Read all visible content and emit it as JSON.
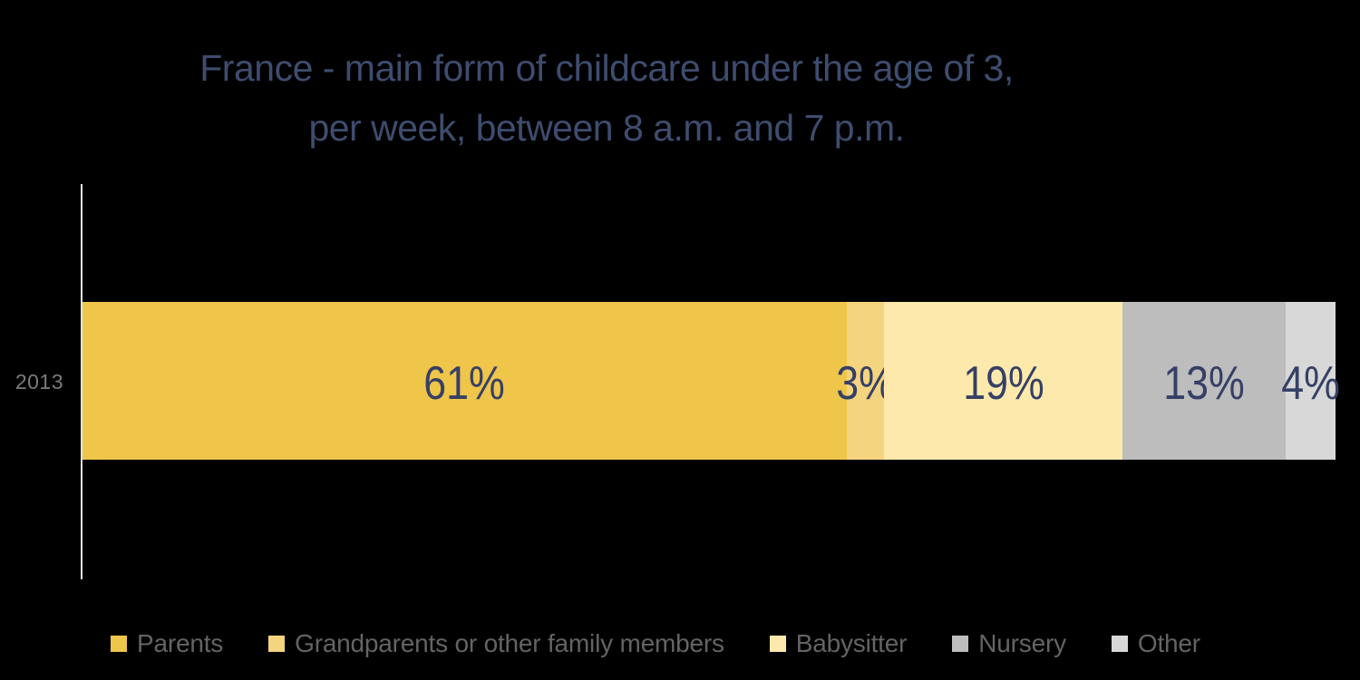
{
  "chart_data": {
    "type": "bar",
    "subtype": "horizontal-stacked",
    "title_line1": "France - main form of childcare under the age of 3,",
    "title_line2": "per week, between 8 a.m. and 7 p.m.",
    "categories": [
      "2013"
    ],
    "series": [
      {
        "name": "Parents",
        "value": 61,
        "label": "61%",
        "color": "#EFC54A"
      },
      {
        "name": "Grandparents or other family members",
        "value": 3,
        "label": "3%",
        "color": "#F4D47E"
      },
      {
        "name": "Babysitter",
        "value": 19,
        "label": "19%",
        "color": "#FEE9AC"
      },
      {
        "name": "Nursery",
        "value": 13,
        "label": "13%",
        "color": "#BDBDBD"
      },
      {
        "name": "Other",
        "value": 4,
        "label": "4%",
        "color": "#D8D8D8"
      }
    ],
    "unit": "%",
    "xlim": [
      0,
      100
    ],
    "grid": false,
    "legend_position": "bottom"
  },
  "colors": {
    "background": "#000000",
    "title_text": "#3E4C6E",
    "data_label_text": "#364066",
    "category_label_text": "#7B7B7B",
    "legend_text": "#646464",
    "axis_line": "#E3E3E3"
  }
}
